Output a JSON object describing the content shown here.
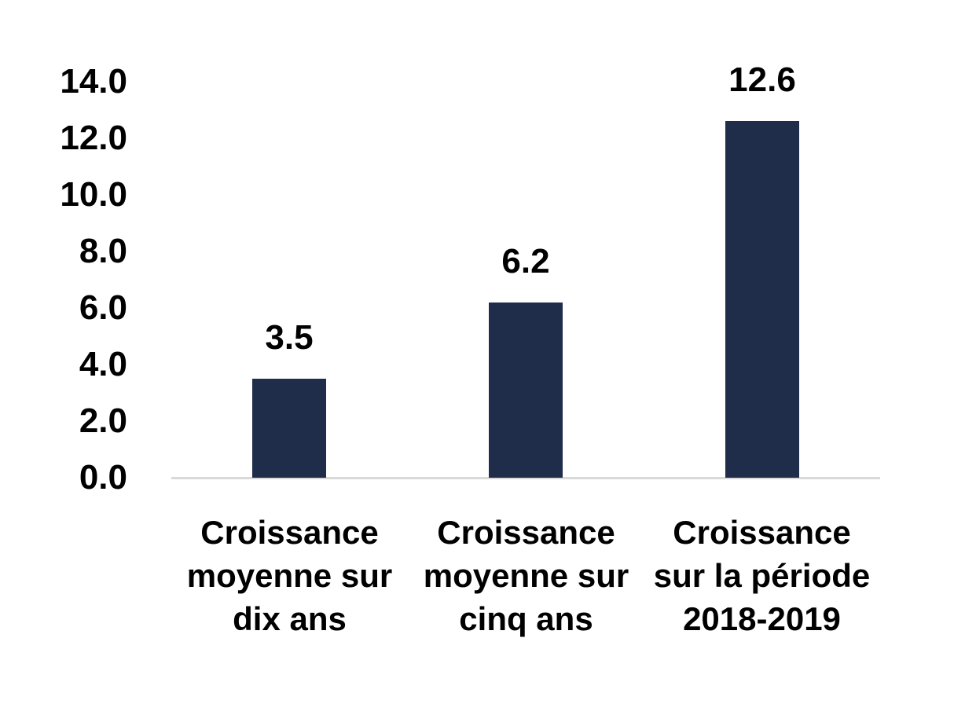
{
  "chart_data": {
    "type": "bar",
    "title": "",
    "xlabel": "",
    "ylabel": "",
    "categories": [
      "Croissance moyenne sur dix ans",
      "Croissance moyenne sur cinq ans",
      "Croissance sur la période 2018-2019"
    ],
    "category_lines": [
      [
        "Croissance",
        "moyenne sur",
        "dix ans"
      ],
      [
        "Croissance",
        "moyenne sur",
        "cinq ans"
      ],
      [
        "Croissance",
        "sur la période",
        "2018-2019"
      ]
    ],
    "values": [
      3.5,
      6.2,
      12.6
    ],
    "data_labels": [
      "3.5",
      "6.2",
      "12.6"
    ],
    "y_ticks": [
      "14.0",
      "12.0",
      "10.0",
      "8.0",
      "6.0",
      "4.0",
      "2.0",
      "0.0"
    ],
    "ylim": [
      0,
      14
    ],
    "grid": false,
    "legend": false,
    "colors": {
      "bar": "#1f2c4a",
      "axis_line": "#d9d9d9",
      "text": "#000000",
      "background": "#ffffff"
    }
  }
}
